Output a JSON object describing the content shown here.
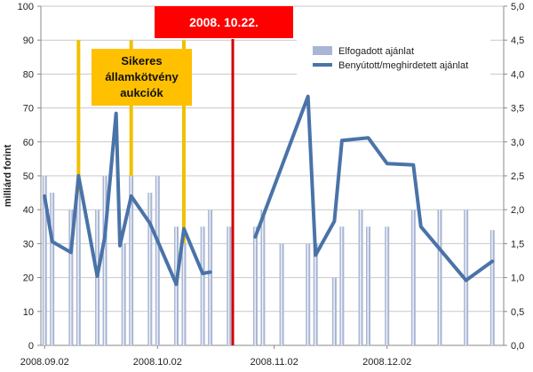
{
  "chart_data": {
    "type": "bar+line",
    "ylabel": "milliárd forint",
    "ylim_left": [
      0,
      100
    ],
    "ylim_right": [
      0,
      5
    ],
    "y_ticks_left": [
      "0",
      "10",
      "20",
      "30",
      "40",
      "50",
      "60",
      "70",
      "80",
      "90",
      "100"
    ],
    "y_ticks_right": [
      "0,0",
      "0,5",
      "1,0",
      "1,5",
      "2,0",
      "2,5",
      "3,0",
      "3,5",
      "4,0",
      "4,5",
      "5,0"
    ],
    "x_ticks": [
      {
        "date": "2008-09-02",
        "label": "2008.09.02"
      },
      {
        "date": "2008-10-02",
        "label": "2008.10.02"
      },
      {
        "date": "2008-11-02",
        "label": "2008.11.02"
      },
      {
        "date": "2008-12-02",
        "label": "2008.12.02"
      }
    ],
    "x_range": [
      "2008-09-01",
      "2009-01-02"
    ],
    "legend": {
      "position": "top-right",
      "items": [
        "Elfogadott ajánlat",
        "Benyútott/meghirdetett ajánlat"
      ]
    },
    "colors": {
      "bars": "#a8b5d4",
      "line": "#4a73a8",
      "auction_lines": "#f0c000",
      "event_line": "#d00000",
      "event_box": "#ff0000",
      "auction_box": "#ffc000"
    },
    "series": [
      {
        "name": "Elfogadott ajánlat",
        "axis": "left",
        "type": "bar",
        "points": [
          {
            "x": "2008-09-02",
            "y": 50
          },
          {
            "x": "2008-09-04",
            "y": 45
          },
          {
            "x": "2008-09-09",
            "y": 40
          },
          {
            "x": "2008-09-11",
            "y": 45
          },
          {
            "x": "2008-09-16",
            "y": 40
          },
          {
            "x": "2008-09-18",
            "y": 50
          },
          {
            "x": "2008-09-23",
            "y": 30
          },
          {
            "x": "2008-09-25",
            "y": 50
          },
          {
            "x": "2008-09-30",
            "y": 45
          },
          {
            "x": "2008-10-02",
            "y": 50
          },
          {
            "x": "2008-10-07",
            "y": 35
          },
          {
            "x": "2008-10-09",
            "y": 30
          },
          {
            "x": "2008-10-14",
            "y": 35
          },
          {
            "x": "2008-10-16",
            "y": 40
          },
          {
            "x": "2008-10-21",
            "y": 35
          },
          {
            "x": "2008-10-28",
            "y": 35
          },
          {
            "x": "2008-10-30",
            "y": 40
          },
          {
            "x": "2008-11-04",
            "y": 30
          },
          {
            "x": "2008-11-11",
            "y": 30
          },
          {
            "x": "2008-11-13",
            "y": 30
          },
          {
            "x": "2008-11-18",
            "y": 20
          },
          {
            "x": "2008-11-20",
            "y": 35
          },
          {
            "x": "2008-11-25",
            "y": 40
          },
          {
            "x": "2008-11-27",
            "y": 35
          },
          {
            "x": "2008-12-02",
            "y": 35
          },
          {
            "x": "2008-12-09",
            "y": 40
          },
          {
            "x": "2008-12-16",
            "y": 40
          },
          {
            "x": "2008-12-23",
            "y": 40
          },
          {
            "x": "2008-12-30",
            "y": 34
          }
        ]
      },
      {
        "name": "Benyútott/meghirdetett ajánlat",
        "axis": "right",
        "type": "line",
        "segments": [
          [
            {
              "x": "2008-09-02",
              "y": 2.2
            },
            {
              "x": "2008-09-04",
              "y": 1.53
            },
            {
              "x": "2008-09-09",
              "y": 1.37
            },
            {
              "x": "2008-09-11",
              "y": 2.5
            },
            {
              "x": "2008-09-16",
              "y": 1.02
            },
            {
              "x": "2008-09-18",
              "y": 1.6
            },
            {
              "x": "2008-09-21",
              "y": 3.42
            },
            {
              "x": "2008-09-22",
              "y": 1.47
            },
            {
              "x": "2008-09-25",
              "y": 2.2
            },
            {
              "x": "2008-09-30",
              "y": 1.8
            },
            {
              "x": "2008-10-07",
              "y": 0.9
            },
            {
              "x": "2008-10-09",
              "y": 1.72
            },
            {
              "x": "2008-10-14",
              "y": 1.06
            },
            {
              "x": "2008-10-16",
              "y": 1.08
            }
          ],
          [
            {
              "x": "2008-10-28",
              "y": 1.6
            },
            {
              "x": "2008-11-11",
              "y": 3.67
            },
            {
              "x": "2008-11-13",
              "y": 1.33
            },
            {
              "x": "2008-11-18",
              "y": 1.83
            },
            {
              "x": "2008-11-20",
              "y": 3.02
            },
            {
              "x": "2008-11-27",
              "y": 3.06
            },
            {
              "x": "2008-12-02",
              "y": 2.68
            },
            {
              "x": "2008-12-09",
              "y": 2.66
            },
            {
              "x": "2008-12-11",
              "y": 1.75
            },
            {
              "x": "2008-12-23",
              "y": 0.96
            },
            {
              "x": "2008-12-30",
              "y": 1.24
            }
          ]
        ]
      }
    ],
    "auction_dates": [
      "2008-09-11",
      "2008-09-25",
      "2008-10-09"
    ],
    "auction_label": [
      "Sikeres",
      "államkötvény",
      "aukciók"
    ],
    "event_date": "2008-10-22",
    "event_label": "2008. 10.22."
  }
}
